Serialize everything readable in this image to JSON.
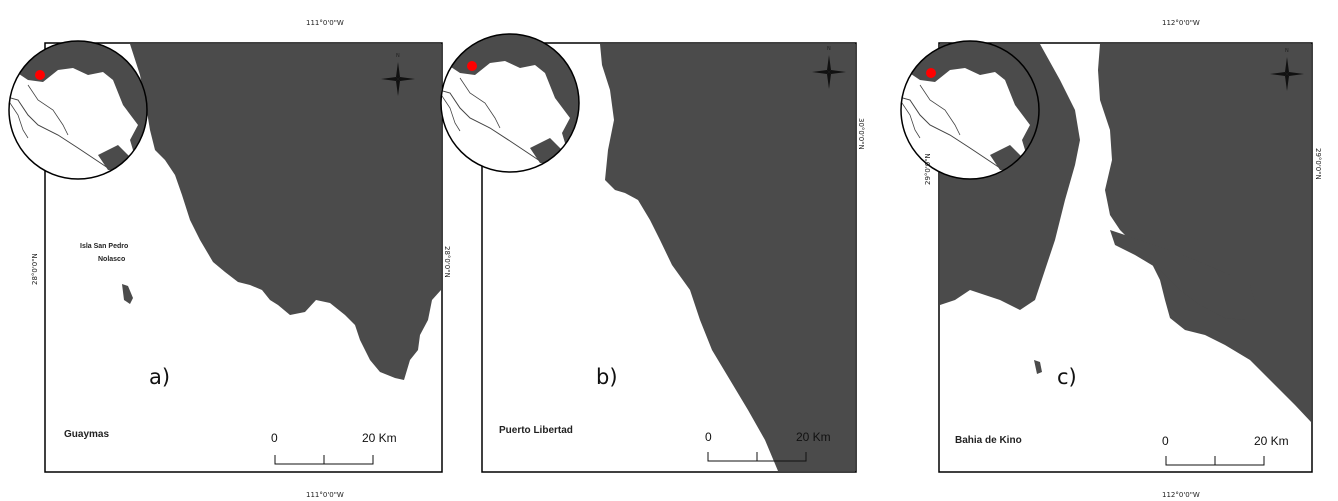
{
  "colors": {
    "land": "#4b4b4b",
    "water": "#ffffff",
    "frame": "#000000",
    "marker": "#ff0000"
  },
  "maps": [
    {
      "panel_label": "a)",
      "place_name": "Guaymas",
      "island_label_line1": "Isla San Pedro",
      "island_label_line2": "Nolasco",
      "lon_label_top": "111°0'0\"W",
      "lon_label_bottom": "111°0'0\"W",
      "lat_label_left": "28°0'0\"N",
      "lat_label_right": "28°0'0\"N",
      "scale_start": "0",
      "scale_end": "20 Km",
      "north_label": "N"
    },
    {
      "panel_label": "b)",
      "place_name": "Puerto Libertad",
      "lat_label_right": "30°0'0\"N",
      "scale_start": "0",
      "scale_end": "20 Km",
      "north_label": "N"
    },
    {
      "panel_label": "c)",
      "place_name": "Bahia de Kino",
      "lon_label_top": "112°0'0\"W",
      "lon_label_bottom": "112°0'0\"W",
      "lat_label_left": "29°0'0\"N",
      "lat_label_right": "29°0'0\"N",
      "scale_start": "0",
      "scale_end": "20 Km",
      "north_label": "N"
    }
  ]
}
